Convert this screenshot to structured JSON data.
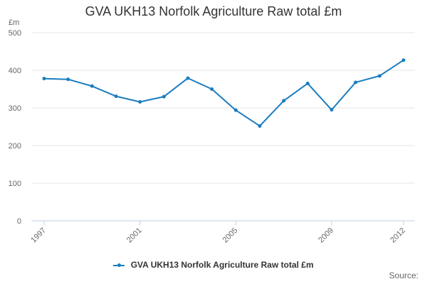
{
  "chart_data": {
    "type": "line",
    "title": "GVA UKH13 Norfolk Agriculture Raw total £m",
    "unit_label": "£m",
    "x": [
      1997,
      1998,
      1999,
      2000,
      2001,
      2002,
      2003,
      2004,
      2005,
      2006,
      2007,
      2008,
      2009,
      2010,
      2011,
      2012
    ],
    "x_tick_labels": [
      "1997",
      "2001",
      "2005",
      "2009",
      "2012"
    ],
    "y_ticks": [
      0,
      100,
      200,
      300,
      400,
      500
    ],
    "ylim": [
      0,
      500
    ],
    "grid": true,
    "legend_position": "bottom",
    "series": [
      {
        "name": "GVA UKH13 Norfolk Agriculture Raw total £m",
        "color": "#1a7dc0",
        "values": [
          378,
          376,
          358,
          331,
          316,
          330,
          379,
          350,
          294,
          252,
          319,
          365,
          295,
          368,
          385,
          427
        ]
      }
    ],
    "source_label": "Source:"
  }
}
